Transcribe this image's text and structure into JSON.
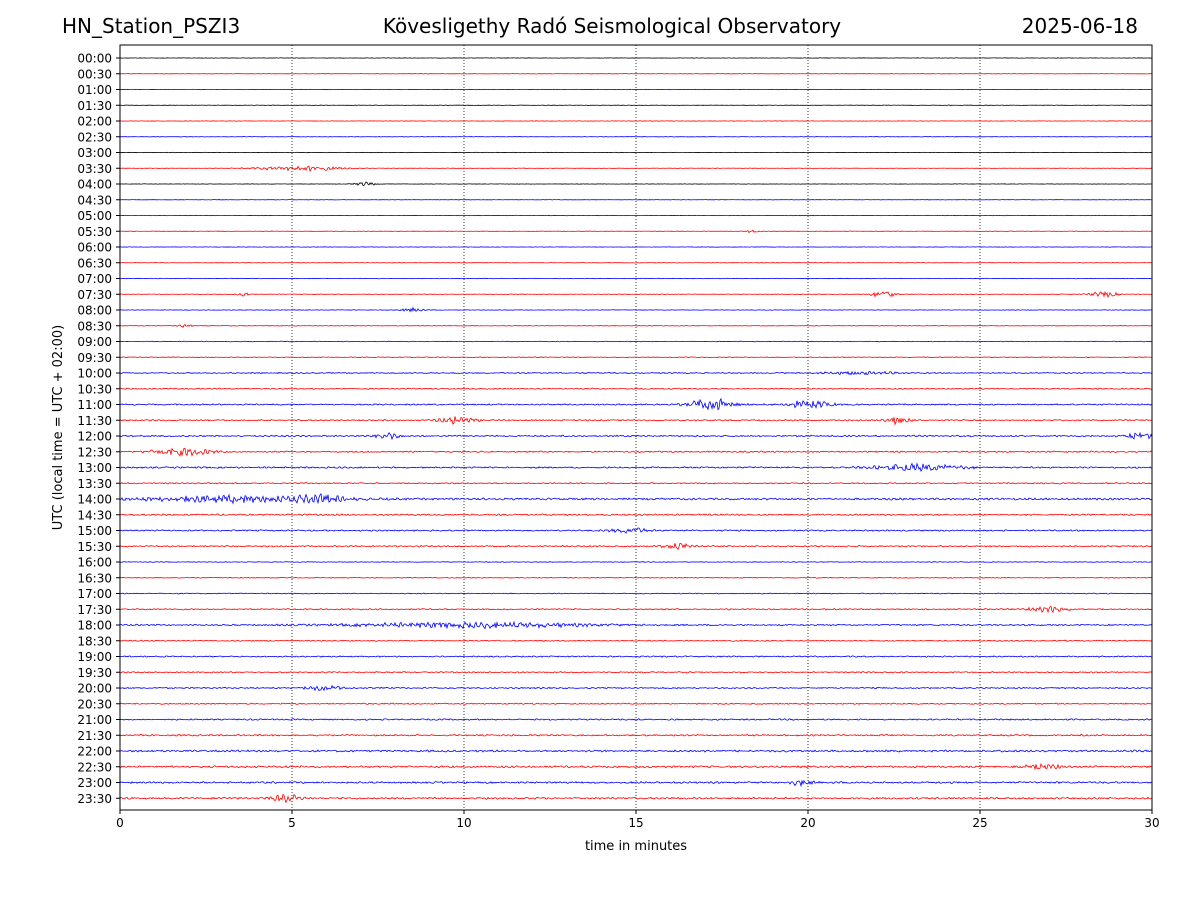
{
  "header": {
    "station": "HN_Station_PSZI3",
    "observatory": "Kövesligethy Radó Seismological Observatory",
    "date": "2025-06-18"
  },
  "chart_data": {
    "type": "line",
    "title": "Kövesligethy Radó Seismological Observatory",
    "xlabel": "time in minutes",
    "ylabel": "UTC (local time = UTC + 02:00)",
    "xlim": [
      0,
      30
    ],
    "x_ticks": [
      "0",
      "5",
      "10",
      "15",
      "20",
      "25",
      "30"
    ],
    "grid": "vertical dotted lines at x = 5, 10, 15, 20, 25",
    "series_colors": [
      "#000000",
      "#ff0000",
      "#0000ff"
    ],
    "rows": [
      {
        "label": "00:00",
        "color": "#000000",
        "amp": 0.3,
        "events": []
      },
      {
        "label": "00:30",
        "color": "#ff0000",
        "amp": 0.3,
        "events": []
      },
      {
        "label": "01:00",
        "color": "#0000ff",
        "amp": 0.3,
        "events": []
      },
      {
        "label": "01:30",
        "color": "#000000",
        "amp": 0.3,
        "events": []
      },
      {
        "label": "02:00",
        "color": "#ff0000",
        "amp": 0.3,
        "events": []
      },
      {
        "label": "02:30",
        "color": "#0000ff",
        "amp": 0.3,
        "events": []
      },
      {
        "label": "03:00",
        "color": "#000000",
        "amp": 0.3,
        "events": []
      },
      {
        "label": "03:30",
        "color": "#ff0000",
        "amp": 0.3,
        "events": [
          [
            5.2,
            2.2,
            1.2
          ]
        ]
      },
      {
        "label": "04:00",
        "color": "#000000",
        "amp": 0.3,
        "events": [
          [
            7.1,
            1.5,
            0.3
          ]
        ]
      },
      {
        "label": "04:30",
        "color": "#0000ff",
        "amp": 0.3,
        "events": []
      },
      {
        "label": "05:00",
        "color": "#0000ff",
        "amp": 0.3,
        "events": []
      },
      {
        "label": "05:30",
        "color": "#ff0000",
        "amp": 0.3,
        "events": [
          [
            18.4,
            1.2,
            0.2
          ]
        ]
      },
      {
        "label": "06:00",
        "color": "#0000ff",
        "amp": 0.3,
        "events": []
      },
      {
        "label": "06:30",
        "color": "#ff0000",
        "amp": 0.3,
        "events": []
      },
      {
        "label": "07:00",
        "color": "#0000ff",
        "amp": 0.4,
        "events": []
      },
      {
        "label": "07:30",
        "color": "#ff0000",
        "amp": 0.4,
        "events": [
          [
            3.6,
            1.5,
            0.2
          ],
          [
            22.2,
            3.5,
            0.3
          ],
          [
            28.6,
            2,
            0.4
          ]
        ]
      },
      {
        "label": "08:00",
        "color": "#0000ff",
        "amp": 0.4,
        "events": [
          [
            8.5,
            1.5,
            0.3
          ]
        ]
      },
      {
        "label": "08:30",
        "color": "#ff0000",
        "amp": 0.4,
        "events": [
          [
            1.9,
            1.2,
            0.2
          ]
        ]
      },
      {
        "label": "09:00",
        "color": "#0000ff",
        "amp": 0.5,
        "events": []
      },
      {
        "label": "09:30",
        "color": "#ff0000",
        "amp": 0.6,
        "events": []
      },
      {
        "label": "10:00",
        "color": "#0000ff",
        "amp": 0.9,
        "events": [
          [
            21.5,
            1.2,
            1
          ]
        ]
      },
      {
        "label": "10:30",
        "color": "#ff0000",
        "amp": 0.9,
        "events": []
      },
      {
        "label": "11:00",
        "color": "#0000ff",
        "amp": 1.1,
        "events": [
          [
            17.2,
            4.5,
            0.6
          ],
          [
            20,
            3,
            0.6
          ]
        ]
      },
      {
        "label": "11:30",
        "color": "#ff0000",
        "amp": 1.1,
        "events": [
          [
            9.8,
            2.5,
            0.5
          ],
          [
            22.6,
            3,
            0.3
          ]
        ]
      },
      {
        "label": "12:00",
        "color": "#0000ff",
        "amp": 1.2,
        "events": [
          [
            7.8,
            2.5,
            0.3
          ],
          [
            29.6,
            2.5,
            0.4
          ]
        ]
      },
      {
        "label": "12:30",
        "color": "#ff0000",
        "amp": 1.1,
        "events": [
          [
            1.8,
            3,
            0.8
          ]
        ]
      },
      {
        "label": "13:00",
        "color": "#0000ff",
        "amp": 1.2,
        "events": [
          [
            23.2,
            2.5,
            1.2
          ]
        ]
      },
      {
        "label": "13:30",
        "color": "#ff0000",
        "amp": 1,
        "events": []
      },
      {
        "label": "14:00",
        "color": "#0000ff",
        "amp": 1.5,
        "events": [
          [
            3.5,
            2.5,
            2.5
          ],
          [
            5.8,
            3,
            0.5
          ]
        ]
      },
      {
        "label": "14:30",
        "color": "#ff0000",
        "amp": 1.2,
        "events": []
      },
      {
        "label": "15:00",
        "color": "#0000ff",
        "amp": 1.1,
        "events": [
          [
            14.8,
            2,
            0.5
          ]
        ]
      },
      {
        "label": "15:30",
        "color": "#ff0000",
        "amp": 1.1,
        "events": [
          [
            16.2,
            2.5,
            0.4
          ]
        ]
      },
      {
        "label": "16:00",
        "color": "#0000ff",
        "amp": 0.5,
        "events": []
      },
      {
        "label": "16:30",
        "color": "#ff0000",
        "amp": 0.6,
        "events": []
      },
      {
        "label": "17:00",
        "color": "#0000ff",
        "amp": 0.7,
        "events": []
      },
      {
        "label": "17:30",
        "color": "#ff0000",
        "amp": 1,
        "events": [
          [
            27,
            2,
            0.6
          ]
        ]
      },
      {
        "label": "18:00",
        "color": "#0000ff",
        "amp": 1.1,
        "events": [
          [
            10.3,
            2,
            3.5
          ]
        ]
      },
      {
        "label": "18:30",
        "color": "#ff0000",
        "amp": 0.9,
        "events": []
      },
      {
        "label": "19:00",
        "color": "#0000ff",
        "amp": 1,
        "events": []
      },
      {
        "label": "19:30",
        "color": "#ff0000",
        "amp": 1,
        "events": []
      },
      {
        "label": "20:00",
        "color": "#0000ff",
        "amp": 1,
        "events": [
          [
            5.9,
            2,
            0.5
          ]
        ]
      },
      {
        "label": "20:30",
        "color": "#ff0000",
        "amp": 1,
        "events": []
      },
      {
        "label": "21:00",
        "color": "#0000ff",
        "amp": 1.1,
        "events": []
      },
      {
        "label": "21:30",
        "color": "#ff0000",
        "amp": 1.2,
        "events": []
      },
      {
        "label": "22:00",
        "color": "#0000ff",
        "amp": 1.5,
        "events": []
      },
      {
        "label": "22:30",
        "color": "#ff0000",
        "amp": 1.5,
        "events": [
          [
            26.8,
            2,
            0.5
          ]
        ]
      },
      {
        "label": "23:00",
        "color": "#0000ff",
        "amp": 1.4,
        "events": [
          [
            19.8,
            2,
            0.3
          ]
        ]
      },
      {
        "label": "23:30",
        "color": "#ff0000",
        "amp": 1.4,
        "events": [
          [
            4.8,
            3,
            0.4
          ]
        ]
      }
    ]
  }
}
